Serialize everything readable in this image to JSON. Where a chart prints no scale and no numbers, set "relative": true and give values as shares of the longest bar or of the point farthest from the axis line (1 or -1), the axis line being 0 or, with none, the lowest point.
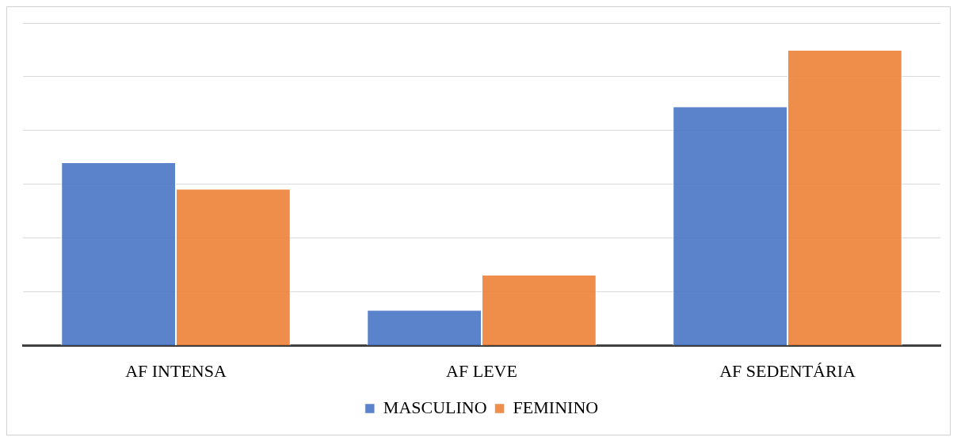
{
  "chart_data": {
    "type": "bar",
    "relative": true,
    "categories": [
      "AF INTENSA",
      "AF LEVE",
      "AF SEDENTÁRIA"
    ],
    "series": [
      {
        "name": "MASCULINO",
        "color": "#4472c4",
        "values": [
          0.619,
          0.119,
          0.809
        ]
      },
      {
        "name": "FEMININO",
        "color": "#ed7d31",
        "values": [
          0.53,
          0.238,
          1
        ]
      }
    ],
    "grid": true,
    "legend": "bottom"
  }
}
